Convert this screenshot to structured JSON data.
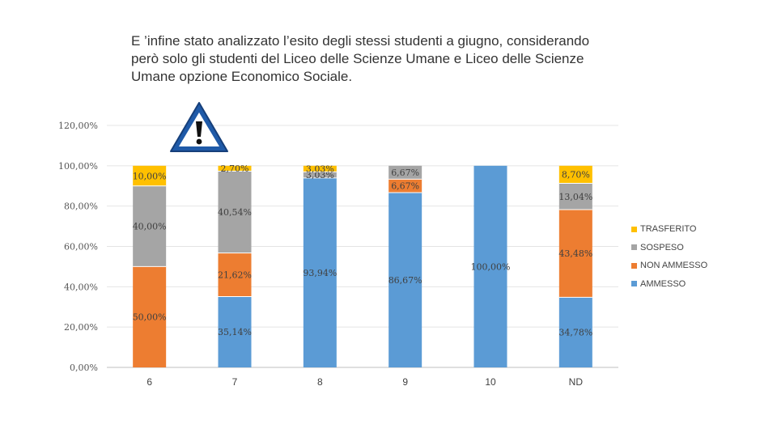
{
  "title_lines": [
    "E ’infine stato analizzato l’esito degli stessi studenti a giugno,  considerando",
    "però solo gli studenti del Liceo delle Scienze Umane e Liceo delle Scienze",
    "Umane opzione Economico Sociale."
  ],
  "icons": {
    "warning": "warning-triangle-icon"
  },
  "chart_data": {
    "type": "bar",
    "stacked": true,
    "categories": [
      "6",
      "7",
      "8",
      "9",
      "10",
      "ND"
    ],
    "yticks": [
      "0,00%",
      "20,00%",
      "40,00%",
      "60,00%",
      "80,00%",
      "100,00%",
      "120,00%"
    ],
    "ylim": [
      0,
      120
    ],
    "grid": true,
    "legend_position": "right",
    "series": [
      {
        "name": "AMMESSO",
        "color": "#5B9BD5",
        "values": [
          0,
          35.14,
          93.94,
          86.67,
          100,
          34.78
        ],
        "labels": [
          "",
          "35,14%",
          "93,94%",
          "86,67%",
          "100,00%",
          "34,78%"
        ]
      },
      {
        "name": "NON AMMESSO",
        "color": "#ED7D31",
        "values": [
          50,
          21.62,
          0,
          6.67,
          0,
          43.48
        ],
        "labels": [
          "50,00%",
          "21,62%",
          "",
          "6,67%",
          "",
          "43,48%"
        ]
      },
      {
        "name": "SOSPESO",
        "color": "#A5A5A5",
        "values": [
          40,
          40.54,
          3.03,
          6.67,
          0,
          13.04
        ],
        "labels": [
          "40,00%",
          "40,54%",
          "3,03%",
          "6,67%",
          "",
          "13,04%"
        ]
      },
      {
        "name": "TRASFERITO",
        "color": "#FFC000",
        "values": [
          10,
          2.7,
          3.03,
          0,
          0,
          8.7
        ],
        "labels": [
          "10,00%",
          "2,70%",
          "3,03%",
          "",
          "",
          "8,70%"
        ]
      }
    ]
  }
}
